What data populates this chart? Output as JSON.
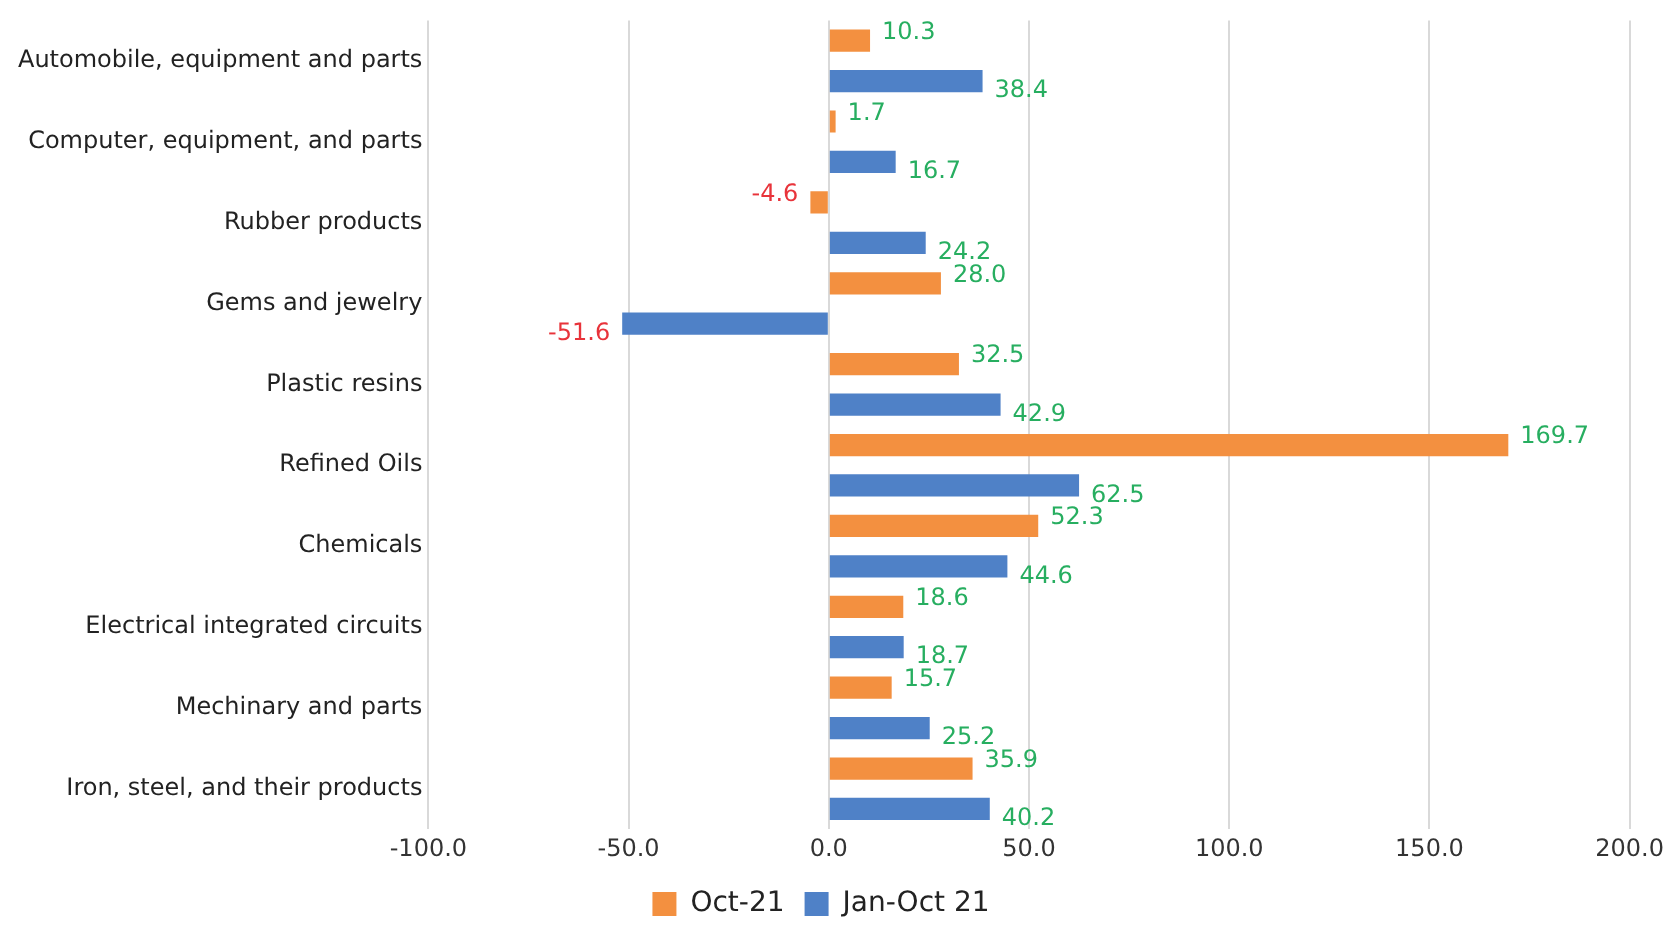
{
  "chart_data": {
    "type": "bar",
    "orientation": "horizontal",
    "categories": [
      "Automobile, equipment and parts",
      "Computer, equipment, and parts",
      "Rubber products",
      "Gems and jewelry",
      "Plastic resins",
      "Refined Oils",
      "Chemicals",
      "Electrical integrated circuits",
      "Mechinary and parts",
      "Iron, steel, and their products"
    ],
    "series": [
      {
        "name": "Oct-21",
        "color": "#f39040",
        "values": [
          10.3,
          1.7,
          -4.6,
          28.0,
          32.5,
          169.7,
          52.3,
          18.6,
          15.7,
          35.9
        ],
        "value_labels": [
          "10.3",
          "1.7",
          "-4.6",
          "28.0",
          "32.5",
          "169.7",
          "52.3",
          "18.6",
          "15.7",
          "35.9"
        ]
      },
      {
        "name": "Jan-Oct 21",
        "color": "#4f81c7",
        "values": [
          38.4,
          16.7,
          24.2,
          -51.6,
          42.9,
          62.5,
          44.6,
          18.7,
          25.2,
          40.2
        ],
        "value_labels": [
          "38.4",
          "16.7",
          "24.2",
          "-51.6",
          "42.9",
          "62.5",
          "44.6",
          "18.7",
          "25.2",
          "40.2"
        ]
      }
    ],
    "xlim": [
      -100,
      200
    ],
    "xticks": [
      {
        "value": -100,
        "label": "-100.0"
      },
      {
        "value": -50,
        "label": "-50.0"
      },
      {
        "value": 0,
        "label": "0.0"
      },
      {
        "value": 50,
        "label": "50.0"
      },
      {
        "value": 100,
        "label": "100.0"
      },
      {
        "value": 150,
        "label": "150.0"
      },
      {
        "value": 200,
        "label": "200.0"
      }
    ],
    "grid": "x",
    "legend": "bottom"
  }
}
